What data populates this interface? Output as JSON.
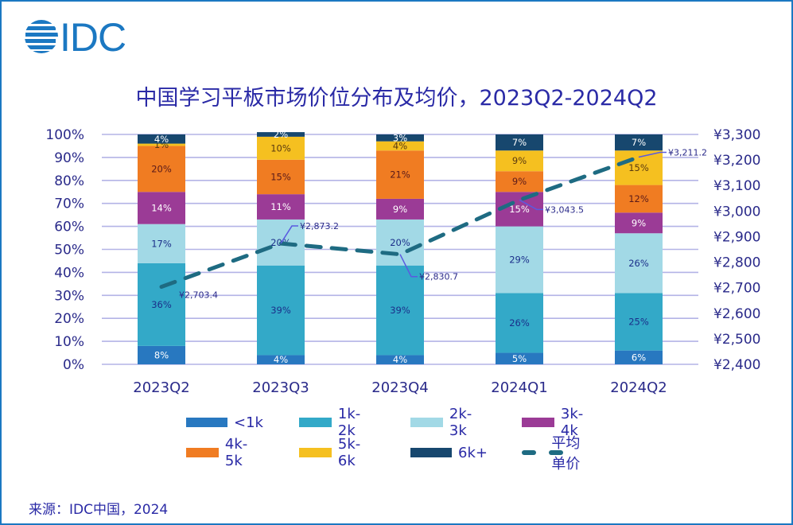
{
  "logo": {
    "text": "IDC",
    "color": "#1b78c2"
  },
  "title": "中国学习平板市场价位分布及均价，2023Q2-2024Q2",
  "source": "来源：IDC中国，2024",
  "chart_data": {
    "type": "bar",
    "stacked": true,
    "title": "中国学习平板市场价位分布及均价，2023Q2-2024Q2",
    "categories": [
      "2023Q2",
      "2023Q3",
      "2023Q4",
      "2024Q1",
      "2024Q2"
    ],
    "series": [
      {
        "name": "<1k",
        "color": "#2878c0",
        "label_color": "#ffffff",
        "values": [
          8,
          4,
          4,
          5,
          6
        ]
      },
      {
        "name": "1k-2k",
        "color": "#33a9c8",
        "label_color": "#1b2f8a",
        "values": [
          36,
          39,
          39,
          26,
          25
        ]
      },
      {
        "name": "2k-3k",
        "color": "#a2d9e6",
        "label_color": "#1b2f8a",
        "values": [
          17,
          20,
          20,
          29,
          26
        ]
      },
      {
        "name": "3k-4k",
        "color": "#9b3b96",
        "label_color": "#ffffff",
        "values": [
          14,
          11,
          9,
          15,
          9
        ]
      },
      {
        "name": "4k-5k",
        "color": "#f07c22",
        "label_color": "#5a1a1a",
        "values": [
          20,
          15,
          21,
          9,
          12
        ]
      },
      {
        "name": "5k-6k",
        "color": "#f5c020",
        "label_color": "#5a3a10",
        "values": [
          1,
          10,
          4,
          9,
          15
        ]
      },
      {
        "name": "6k+",
        "color": "#17476e",
        "label_color": "#ffffff",
        "values": [
          4,
          2,
          3,
          7,
          7
        ]
      }
    ],
    "line_series": {
      "name": "平均单价",
      "color": "#1e6b82",
      "axis": "right",
      "style": "dashed",
      "values": [
        2703.4,
        2873.2,
        2830.7,
        3043.5,
        3211.2
      ],
      "labels": [
        "¥2,703.4",
        "¥2,873.2",
        "¥2,830.7",
        "¥3,043.5",
        "¥3,211.2"
      ]
    },
    "y_left": {
      "range": [
        0,
        100
      ],
      "ticks": [
        "0%",
        "10%",
        "20%",
        "30%",
        "40%",
        "50%",
        "60%",
        "70%",
        "80%",
        "90%",
        "100%"
      ]
    },
    "y_right": {
      "range": [
        2400,
        3300
      ],
      "ticks": [
        "¥2,400",
        "¥2,500",
        "¥2,600",
        "¥2,700",
        "¥2,800",
        "¥2,900",
        "¥3,000",
        "¥3,100",
        "¥3,200",
        "¥3,300"
      ]
    },
    "grid": true,
    "grid_color": "#b3b3e6",
    "xlabel": "",
    "ylabel": "",
    "legend_position": "bottom",
    "legend": [
      "<1k",
      "1k-2k",
      "2k-3k",
      "3k-4k",
      "4k-5k",
      "5k-6k",
      "6k+",
      "平均单价"
    ]
  }
}
